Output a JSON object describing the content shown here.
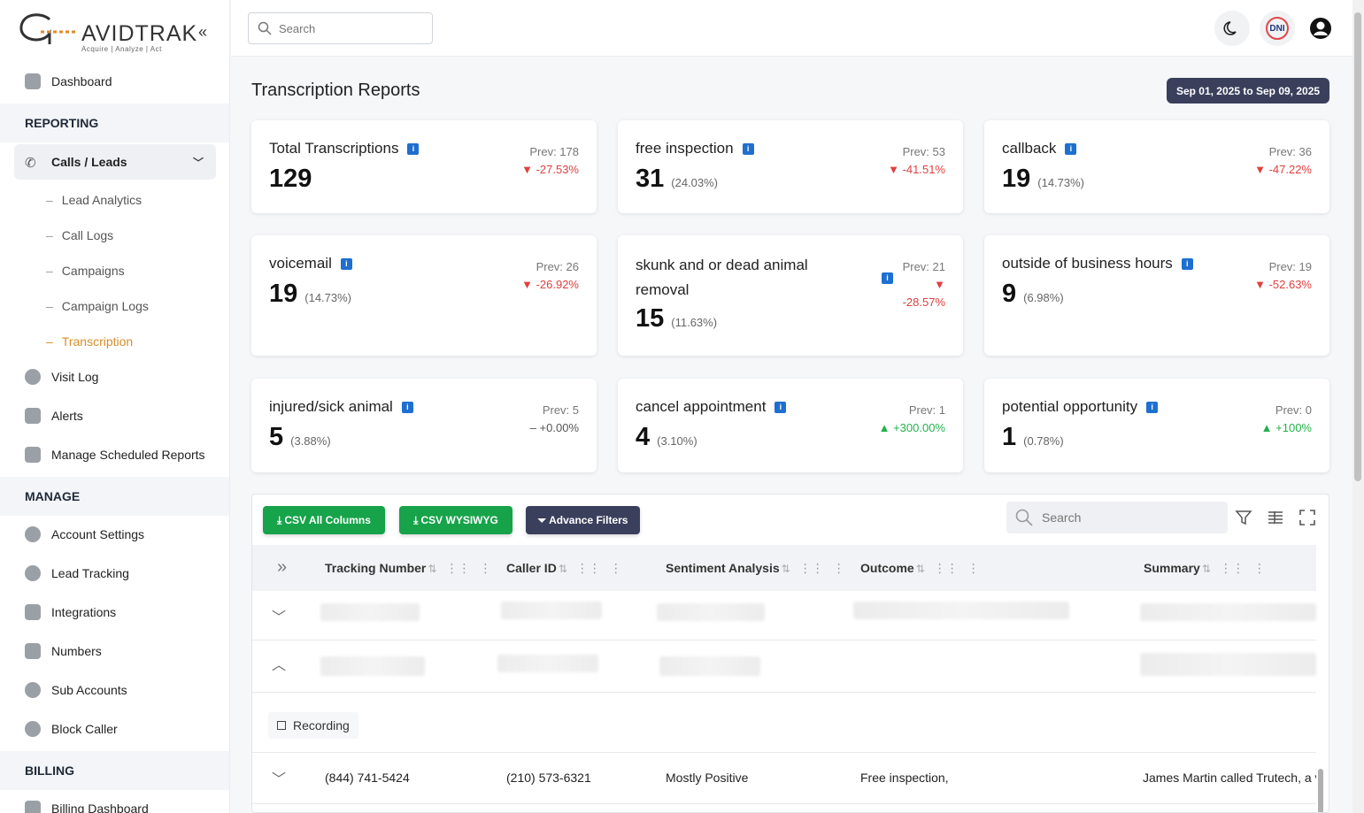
{
  "brand": {
    "name_main": "AVIDTRAK",
    "tagline": "Acquire  |  Analyze  |  Act"
  },
  "sidebar": {
    "dashboard": "Dashboard",
    "sections": {
      "reporting": "REPORTING",
      "manage": "MANAGE",
      "billing": "BILLING"
    },
    "calls_leads": "Calls / Leads",
    "sub_items": [
      "Lead Analytics",
      "Call Logs",
      "Campaigns",
      "Campaign Logs",
      "Transcription"
    ],
    "reporting_items": [
      "Visit Log",
      "Alerts",
      "Manage Scheduled Reports"
    ],
    "manage_items": [
      "Account Settings",
      "Lead Tracking",
      "Integrations",
      "Numbers",
      "Sub Accounts",
      "Block Caller"
    ],
    "billing_items": [
      "Billing Dashboard"
    ]
  },
  "topbar": {
    "search_placeholder": "Search",
    "dni_label": "DNI"
  },
  "page": {
    "title": "Transcription Reports",
    "date_range": "Sep 01, 2025 to Sep 09, 2025"
  },
  "cards": [
    {
      "label": "Total Transcriptions",
      "value": "129",
      "pct": "",
      "prev": "Prev: 178",
      "change": "▼ -27.53%",
      "trend": "down"
    },
    {
      "label": "free inspection",
      "value": "31",
      "pct": "(24.03%)",
      "prev": "Prev: 53",
      "change": "▼ -41.51%",
      "trend": "down"
    },
    {
      "label": "callback",
      "value": "19",
      "pct": "(14.73%)",
      "prev": "Prev: 36",
      "change": "▼ -47.22%",
      "trend": "down"
    },
    {
      "label": "voicemail",
      "value": "19",
      "pct": "(14.73%)",
      "prev": "Prev: 26",
      "change": "▼ -26.92%",
      "trend": "down"
    },
    {
      "label_line1": "skunk and or dead animal",
      "label_line2": "removal",
      "value": "15",
      "pct": "(11.63%)",
      "prev": "Prev: 21",
      "change_arrow": "▼",
      "change": "-28.57%",
      "trend": "down"
    },
    {
      "label": "outside of business hours",
      "value": "9",
      "pct": "(6.98%)",
      "prev": "Prev: 19",
      "change": "▼ -52.63%",
      "trend": "down"
    },
    {
      "label": "injured/sick animal",
      "value": "5",
      "pct": "(3.88%)",
      "prev": "Prev: 5",
      "change": "– +0.00%",
      "trend": "flat"
    },
    {
      "label": "cancel appointment",
      "value": "4",
      "pct": "(3.10%)",
      "prev": "Prev: 1",
      "change": "▲ +300.00%",
      "trend": "up"
    },
    {
      "label": "potential opportunity",
      "value": "1",
      "pct": "(0.78%)",
      "prev": "Prev: 0",
      "change": "▲ +100%",
      "trend": "up"
    }
  ],
  "table": {
    "buttons": {
      "csv_all": "CSV All Columns",
      "csv_wysiwyg": "CSV WYSIWYG",
      "advance_filters": "Advance Filters"
    },
    "search_placeholder": "Search",
    "columns": [
      "Tracking Number",
      "Caller ID",
      "Sentiment Analysis",
      "Outcome",
      "Summary"
    ],
    "recording_label": "Recording",
    "row": {
      "tracking": "(844) 741-5424",
      "caller": "(210) 573-6321",
      "sentiment": "Mostly Positive",
      "outcome": "Free inspection,",
      "summary": "James Martin called Trutech, a v"
    }
  },
  "colors": {
    "accent": "#e08a2a",
    "green": "#17a34a",
    "dark": "#3a3f5c",
    "down": "#e04040",
    "up": "#22b14c"
  }
}
